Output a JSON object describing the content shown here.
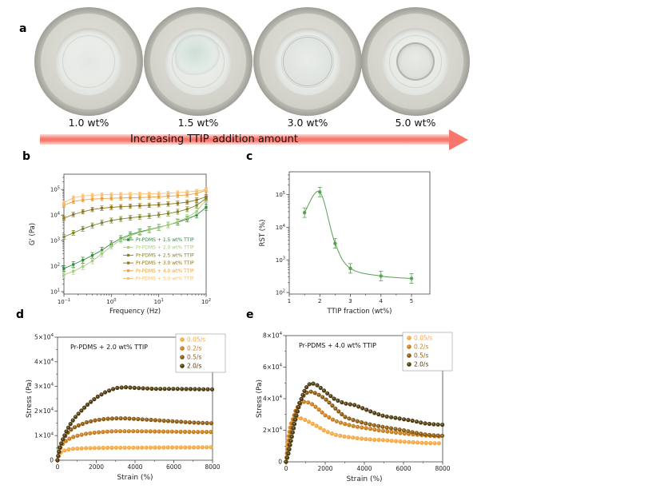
{
  "panels": {
    "a": {
      "label": "a",
      "dishes": [
        {
          "label": "1.0 wt%"
        },
        {
          "label": "1.5 wt%"
        },
        {
          "label": "3.0 wt%"
        },
        {
          "label": "5.0 wt%"
        }
      ],
      "arrow_label": "Increasing TTIP addition amount",
      "arrow_color": "#f8776d"
    },
    "b": {
      "label": "b"
    },
    "c": {
      "label": "c"
    },
    "d": {
      "label": "d"
    },
    "e": {
      "label": "e"
    }
  },
  "chart_data": [
    {
      "id": "b",
      "type": "line",
      "xscale": "log",
      "yscale": "log",
      "xlabel": "Frequency (Hz)",
      "ylabel": "G' (Pa)",
      "xlim": [
        0.1,
        100
      ],
      "ylim": [
        8,
        400000
      ],
      "xticks": [
        0.1,
        1,
        10,
        100
      ],
      "yticks": [
        10,
        100,
        1000,
        10000,
        100000
      ],
      "legend_position": "bottom-right",
      "x": [
        0.1,
        0.158,
        0.251,
        0.398,
        0.631,
        1,
        1.58,
        2.51,
        3.98,
        6.31,
        10,
        15.8,
        25.1,
        39.8,
        63.1,
        100
      ],
      "series": [
        {
          "name": "Pr-PDMS + 1.5 wt% TTIP",
          "color": "#2e8b3a",
          "err": 1.3,
          "values": [
            80,
            115,
            170,
            260,
            420,
            750,
            1200,
            1700,
            2200,
            2700,
            3300,
            4100,
            5200,
            7000,
            10000,
            20000
          ]
        },
        {
          "name": "Pr-PDMS + 2.0 wt% TTIP",
          "color": "#a8cc80",
          "err": 1.3,
          "values": [
            45,
            62,
            95,
            160,
            300,
            600,
            1050,
            1550,
            2050,
            2600,
            3200,
            4100,
            5500,
            8000,
            14000,
            40000
          ]
        },
        {
          "name": "Pr-PDMS + 2.5 wt% TTIP",
          "color": "#7d8526",
          "err": 1.25,
          "values": [
            1400,
            2000,
            2900,
            3900,
            5000,
            6100,
            7000,
            7800,
            8500,
            9200,
            10200,
            11500,
            13500,
            17000,
            24000,
            45000
          ]
        },
        {
          "name": "Pr-PDMS + 3.0 wt% TTIP",
          "color": "#8f7418",
          "err": 1.22,
          "values": [
            7500,
            10500,
            13500,
            16500,
            18500,
            20000,
            21200,
            22200,
            23200,
            24200,
            25500,
            27000,
            29000,
            32000,
            39000,
            52000
          ]
        },
        {
          "name": "Pr-PDMS + 4.0 wt% TTIP",
          "color": "#eda13c",
          "err": 1.2,
          "values": [
            24000,
            34000,
            39000,
            42000,
            44000,
            45500,
            46500,
            47500,
            48500,
            50000,
            52000,
            54500,
            57500,
            62000,
            70000,
            95000
          ]
        },
        {
          "name": "Pr-PDMS + 5.0 wt% TTIP",
          "color": "#f7c178",
          "err": 1.18,
          "values": [
            30000,
            48000,
            56000,
            60000,
            62500,
            64000,
            65000,
            66000,
            67000,
            68500,
            70000,
            72500,
            75500,
            80000,
            87000,
            100000
          ]
        }
      ]
    },
    {
      "id": "c",
      "type": "line",
      "xscale": "linear",
      "yscale": "log",
      "xlabel": "TTIP fraction (wt%)",
      "ylabel": "RST (%)",
      "xlim": [
        1,
        5.6
      ],
      "ylim": [
        90,
        500000
      ],
      "xticks": [
        1,
        2,
        3,
        4,
        5
      ],
      "yticks": [
        100,
        1000,
        10000,
        100000
      ],
      "color": "#5aa055",
      "err": 1.4,
      "x": [
        1.5,
        2,
        2.5,
        3,
        4,
        5
      ],
      "values": [
        28000,
        120000,
        3200,
        550,
        320,
        270
      ]
    },
    {
      "id": "d",
      "type": "scatter",
      "title": "Pr-PDMS + 2.0 wt% TTIP",
      "xlabel": "Strain (%)",
      "ylabel": "Stress (Pa)",
      "xlim": [
        0,
        8000
      ],
      "ylim": [
        0,
        50000
      ],
      "xticks": [
        0,
        2000,
        4000,
        6000,
        8000
      ],
      "yticks": [
        0,
        10000,
        20000,
        30000,
        40000,
        50000
      ],
      "legend_position": "top-right",
      "x": [
        0,
        100,
        250,
        500,
        750,
        1000,
        1500,
        2000,
        2500,
        3000,
        3500,
        4000,
        5000,
        6000,
        7000,
        8000
      ],
      "series": [
        {
          "name": "0.05/s",
          "color": "#f5a843",
          "values": [
            0,
            2600,
            3700,
            4300,
            4600,
            4750,
            4900,
            5000,
            5050,
            5100,
            5100,
            5100,
            5150,
            5200,
            5200,
            5300
          ]
        },
        {
          "name": "0.2/s",
          "color": "#c87d1e",
          "values": [
            0,
            4200,
            6500,
            8300,
            9300,
            9900,
            10800,
            11300,
            11600,
            11800,
            11800,
            11800,
            11700,
            11600,
            11500,
            11500
          ]
        },
        {
          "name": "0.5/s",
          "color": "#8a5a12",
          "values": [
            0,
            5000,
            8000,
            11000,
            12800,
            13900,
            15400,
            16300,
            16800,
            17000,
            17000,
            16800,
            16300,
            15800,
            15300,
            15000
          ]
        },
        {
          "name": "2.0/s",
          "color": "#4d3a10",
          "values": [
            0,
            4500,
            8000,
            12500,
            15800,
            18300,
            22300,
            25500,
            27800,
            29300,
            29700,
            29400,
            29000,
            29000,
            28900,
            28800
          ]
        }
      ]
    },
    {
      "id": "e",
      "type": "scatter",
      "title": "Pr-PDMS + 4.0 wt% TTIP",
      "xlabel": "Strain (%)",
      "ylabel": "Stress (Pa)",
      "xlim": [
        0,
        8000
      ],
      "ylim": [
        0,
        80000
      ],
      "xticks": [
        0,
        2000,
        4000,
        6000,
        8000
      ],
      "yticks": [
        0,
        20000,
        40000,
        60000,
        80000
      ],
      "legend_position": "top-right",
      "x": [
        0,
        100,
        200,
        300,
        500,
        700,
        900,
        1100,
        1300,
        1600,
        2000,
        2500,
        3000,
        3500,
        4000,
        4500,
        5000,
        5500,
        6000,
        6500,
        7000,
        7500,
        8000
      ],
      "series": [
        {
          "name": "0.05/s",
          "color": "#f5a843",
          "values": [
            0,
            14000,
            22000,
            26000,
            28000,
            27800,
            27000,
            25800,
            24500,
            22500,
            19500,
            17200,
            16000,
            15200,
            14500,
            14000,
            13800,
            13200,
            12800,
            12400,
            12000,
            11800,
            11800
          ]
        },
        {
          "name": "0.2/s",
          "color": "#c87d1e",
          "values": [
            0,
            9000,
            18000,
            25000,
            33000,
            36500,
            38000,
            37800,
            36800,
            34000,
            29500,
            26000,
            24000,
            22500,
            21500,
            20500,
            19500,
            18700,
            18000,
            17400,
            16800,
            16300,
            16000
          ]
        },
        {
          "name": "0.5/s",
          "color": "#8a5a12",
          "values": [
            0,
            6000,
            13000,
            20000,
            31000,
            38000,
            42000,
            44200,
            44500,
            43000,
            40000,
            34000,
            28500,
            26200,
            24500,
            23200,
            22000,
            21000,
            20000,
            18700,
            17500,
            16800,
            16500
          ]
        },
        {
          "name": "2.0/s",
          "color": "#4d3a10",
          "values": [
            0,
            4000,
            10000,
            16000,
            28000,
            37000,
            44000,
            48500,
            50000,
            48500,
            44500,
            39500,
            37000,
            36000,
            33500,
            31000,
            29000,
            28000,
            27000,
            26000,
            24500,
            23800,
            23500
          ]
        }
      ]
    }
  ]
}
